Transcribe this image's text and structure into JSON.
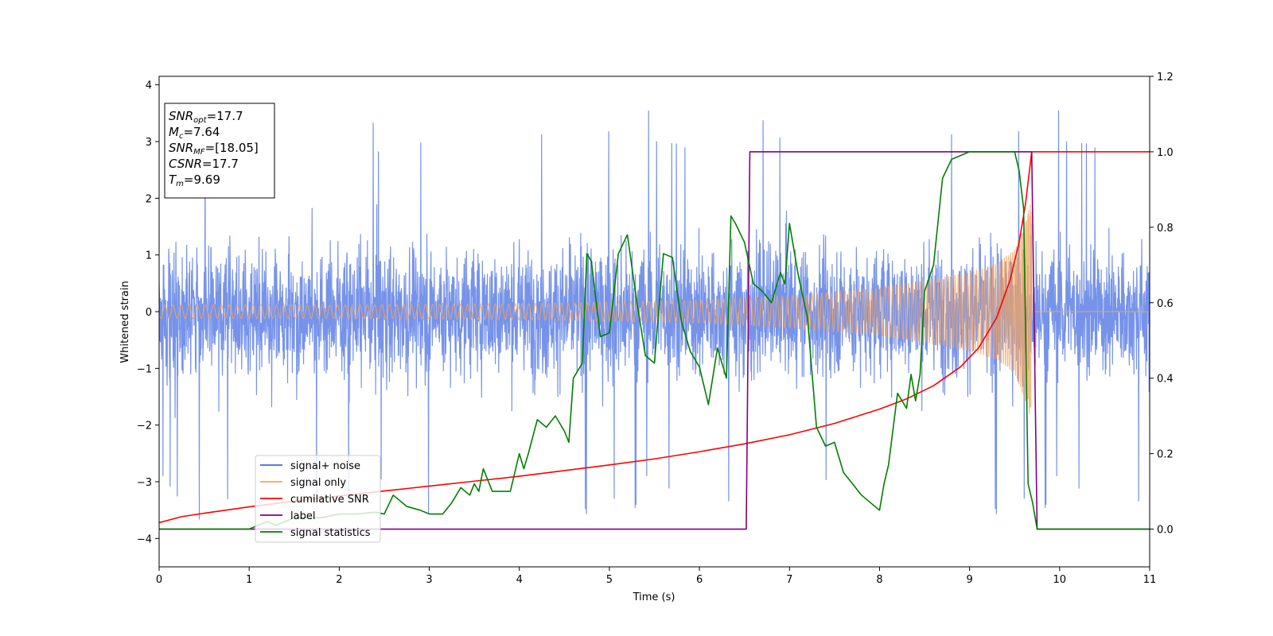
{
  "chart_data": {
    "type": "line",
    "title": "",
    "xlabel": "Time (s)",
    "ylabel": "Whitened strain",
    "xlim": [
      0,
      11
    ],
    "ylim": [
      -4.5,
      4.15
    ],
    "y2lim": [
      -0.1,
      1.2
    ],
    "x_ticks": [
      "0",
      "1",
      "2",
      "3",
      "4",
      "5",
      "6",
      "7",
      "8",
      "9",
      "10",
      "11"
    ],
    "y_ticks": [
      "−4",
      "−3",
      "−2",
      "−1",
      "0",
      "1",
      "2",
      "3",
      "4"
    ],
    "y2_ticks": [
      "0.0",
      "0.2",
      "0.4",
      "0.6",
      "0.8",
      "1.0",
      "1.2"
    ],
    "grid": false,
    "legend_position": "lower-left",
    "legend": [
      {
        "label": "signal+ noise",
        "color": "#4169e1"
      },
      {
        "label": "signal only",
        "color": "#f4a460"
      },
      {
        "label": "cumilative SNR",
        "color": "#ff0000"
      },
      {
        "label": "label",
        "color": "#800080"
      },
      {
        "label": "signal statistics",
        "color": "#008000"
      }
    ],
    "annotation": {
      "lines": [
        {
          "name": "SNR",
          "sub": "opt",
          "value": "=17.7"
        },
        {
          "name": "M",
          "sub": "c",
          "value": "=7.64"
        },
        {
          "name": "SNR",
          "sub": "MF",
          "value": "=[18.05]"
        },
        {
          "name": "CSNR",
          "sub": "",
          "value": "=17.7"
        },
        {
          "name": "T",
          "sub": "m",
          "value": "=9.69"
        }
      ]
    },
    "series": [
      {
        "name": "signal+ noise",
        "axis": "left",
        "color": "#4169e1",
        "style": "noise",
        "x_range": [
          0,
          11
        ],
        "typical_amplitude": 1.8,
        "peak_max": 3.8,
        "peak_min": -4.2
      },
      {
        "name": "signal only",
        "axis": "left",
        "color": "#f4a460",
        "style": "chirp",
        "x_range": [
          0,
          11
        ],
        "merger_time": 9.69,
        "envelope": [
          [
            0,
            0.12
          ],
          [
            2,
            0.12
          ],
          [
            4,
            0.14
          ],
          [
            6,
            0.2
          ],
          [
            7,
            0.28
          ],
          [
            8,
            0.42
          ],
          [
            8.5,
            0.55
          ],
          [
            9,
            0.7
          ],
          [
            9.3,
            0.85
          ],
          [
            9.5,
            1.1
          ],
          [
            9.6,
            1.5
          ],
          [
            9.69,
            2.0
          ]
        ],
        "post_merger_value": 0
      },
      {
        "name": "cumilative SNR",
        "axis": "right",
        "color": "#ff0000",
        "x": [
          0,
          0.25,
          0.5,
          1,
          1.5,
          2,
          2.5,
          3,
          3.5,
          4,
          4.5,
          5,
          5.5,
          6,
          6.5,
          7,
          7.5,
          8,
          8.3,
          8.6,
          8.9,
          9.1,
          9.3,
          9.45,
          9.55,
          9.62,
          9.69,
          11
        ],
        "values": [
          0.017,
          0.033,
          0.042,
          0.059,
          0.074,
          0.088,
          0.101,
          0.114,
          0.127,
          0.14,
          0.155,
          0.17,
          0.186,
          0.205,
          0.226,
          0.25,
          0.28,
          0.318,
          0.345,
          0.38,
          0.43,
          0.48,
          0.56,
          0.66,
          0.76,
          0.86,
          1.0,
          1.0
        ]
      },
      {
        "name": "label",
        "axis": "right",
        "color": "#800080",
        "x": [
          0,
          6.52,
          6.56,
          9.69,
          9.75,
          11
        ],
        "values": [
          0,
          0,
          1,
          1,
          0,
          0
        ]
      },
      {
        "name": "signal statistics",
        "axis": "right",
        "color": "#008000",
        "x": [
          0,
          1.0,
          1.2,
          1.3,
          1.5,
          1.8,
          2.0,
          2.2,
          2.4,
          2.5,
          2.6,
          2.75,
          2.9,
          3.0,
          3.15,
          3.25,
          3.35,
          3.45,
          3.5,
          3.55,
          3.6,
          3.7,
          3.8,
          3.9,
          4.0,
          4.05,
          4.1,
          4.2,
          4.3,
          4.4,
          4.5,
          4.55,
          4.6,
          4.7,
          4.75,
          4.8,
          4.9,
          5.0,
          5.1,
          5.2,
          5.3,
          5.4,
          5.5,
          5.6,
          5.7,
          5.8,
          5.9,
          6.0,
          6.05,
          6.1,
          6.2,
          6.3,
          6.35,
          6.4,
          6.5,
          6.6,
          6.7,
          6.8,
          6.9,
          6.95,
          7.0,
          7.1,
          7.2,
          7.3,
          7.4,
          7.5,
          7.6,
          7.7,
          7.8,
          7.9,
          8.0,
          8.05,
          8.1,
          8.2,
          8.3,
          8.35,
          8.4,
          8.45,
          8.5,
          8.6,
          8.7,
          8.8,
          8.9,
          9.0,
          9.1,
          9.2,
          9.3,
          9.4,
          9.5,
          9.55,
          9.6,
          9.65,
          9.7,
          9.75,
          11
        ],
        "values": [
          0.0,
          0.0,
          0.02,
          0.01,
          0.03,
          0.03,
          0.04,
          0.04,
          0.045,
          0.04,
          0.09,
          0.06,
          0.05,
          0.04,
          0.04,
          0.07,
          0.11,
          0.09,
          0.12,
          0.1,
          0.16,
          0.1,
          0.1,
          0.1,
          0.2,
          0.16,
          0.2,
          0.29,
          0.27,
          0.3,
          0.26,
          0.23,
          0.4,
          0.44,
          0.73,
          0.71,
          0.51,
          0.52,
          0.73,
          0.78,
          0.61,
          0.46,
          0.44,
          0.73,
          0.72,
          0.55,
          0.47,
          0.43,
          0.38,
          0.33,
          0.48,
          0.4,
          0.83,
          0.81,
          0.76,
          0.65,
          0.63,
          0.6,
          0.68,
          0.65,
          0.81,
          0.67,
          0.56,
          0.27,
          0.22,
          0.23,
          0.15,
          0.12,
          0.09,
          0.07,
          0.05,
          0.12,
          0.17,
          0.36,
          0.32,
          0.41,
          0.34,
          0.41,
          0.63,
          0.7,
          0.93,
          0.98,
          0.99,
          1.0,
          1.0,
          1.0,
          1.0,
          1.0,
          1.0,
          0.95,
          0.85,
          0.12,
          0.07,
          0.0,
          0.0
        ]
      }
    ]
  }
}
